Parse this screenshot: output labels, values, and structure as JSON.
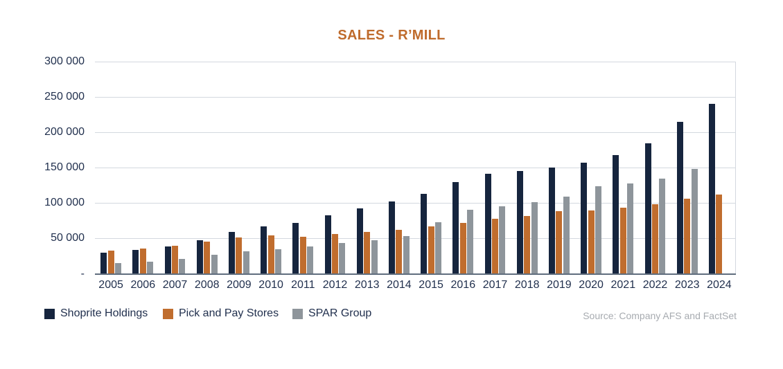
{
  "title": {
    "text": "SALES - R’MILL",
    "color": "#bf6b2c"
  },
  "source_note": "Source: Company AFS and FactSet",
  "colors": {
    "navy": "#16253e",
    "orange": "#c06d2e",
    "gray": "#8e959b",
    "gridline": "#d3d8df",
    "axis_line": "#5f6d7d",
    "axis_text": "#1f2e4c",
    "title_text": "#bf6b2c",
    "source_text": "#a7abb0"
  },
  "chart_data": {
    "type": "bar",
    "title": "SALES - R’MILL",
    "xlabel": "",
    "ylabel": "",
    "ylim": [
      0,
      300000
    ],
    "grid": "horizontal",
    "legend_position": "bottom-left",
    "source": "Source: Company AFS and FactSet",
    "ytick_labels": [
      "300 000",
      "250 000",
      "200 000",
      "150 000",
      "100 000",
      "50 000",
      "-"
    ],
    "ytick_values": [
      300000,
      250000,
      200000,
      150000,
      100000,
      50000,
      0
    ],
    "categories": [
      "2005",
      "2006",
      "2007",
      "2008",
      "2009",
      "2010",
      "2011",
      "2012",
      "2013",
      "2014",
      "2015",
      "2016",
      "2017",
      "2018",
      "2019",
      "2020",
      "2021",
      "2022",
      "2023",
      "2024"
    ],
    "series": [
      {
        "name": "Shoprite Holdings",
        "color": "#16253e",
        "values": [
          30000,
          34000,
          38300,
          47700,
          59300,
          67400,
          72300,
          82400,
          92400,
          102200,
          113400,
          130000,
          141000,
          145300,
          150400,
          156900,
          168000,
          184100,
          215300,
          240700
        ]
      },
      {
        "name": "Pick and Pay Stores",
        "color": "#c06d2e",
        "values": [
          32700,
          35600,
          39800,
          45700,
          50900,
          54500,
          52200,
          55800,
          59200,
          62600,
          66900,
          72400,
          77500,
          81500,
          88300,
          89200,
          93000,
          97900,
          106600,
          112300
        ]
      },
      {
        "name": "SPAR Group",
        "color": "#8e959b",
        "values": [
          15000,
          17600,
          21400,
          26800,
          32000,
          35000,
          38500,
          43600,
          47400,
          53800,
          73400,
          90700,
          95400,
          101200,
          109200,
          123900,
          127900,
          135000,
          148600,
          null
        ]
      }
    ]
  }
}
